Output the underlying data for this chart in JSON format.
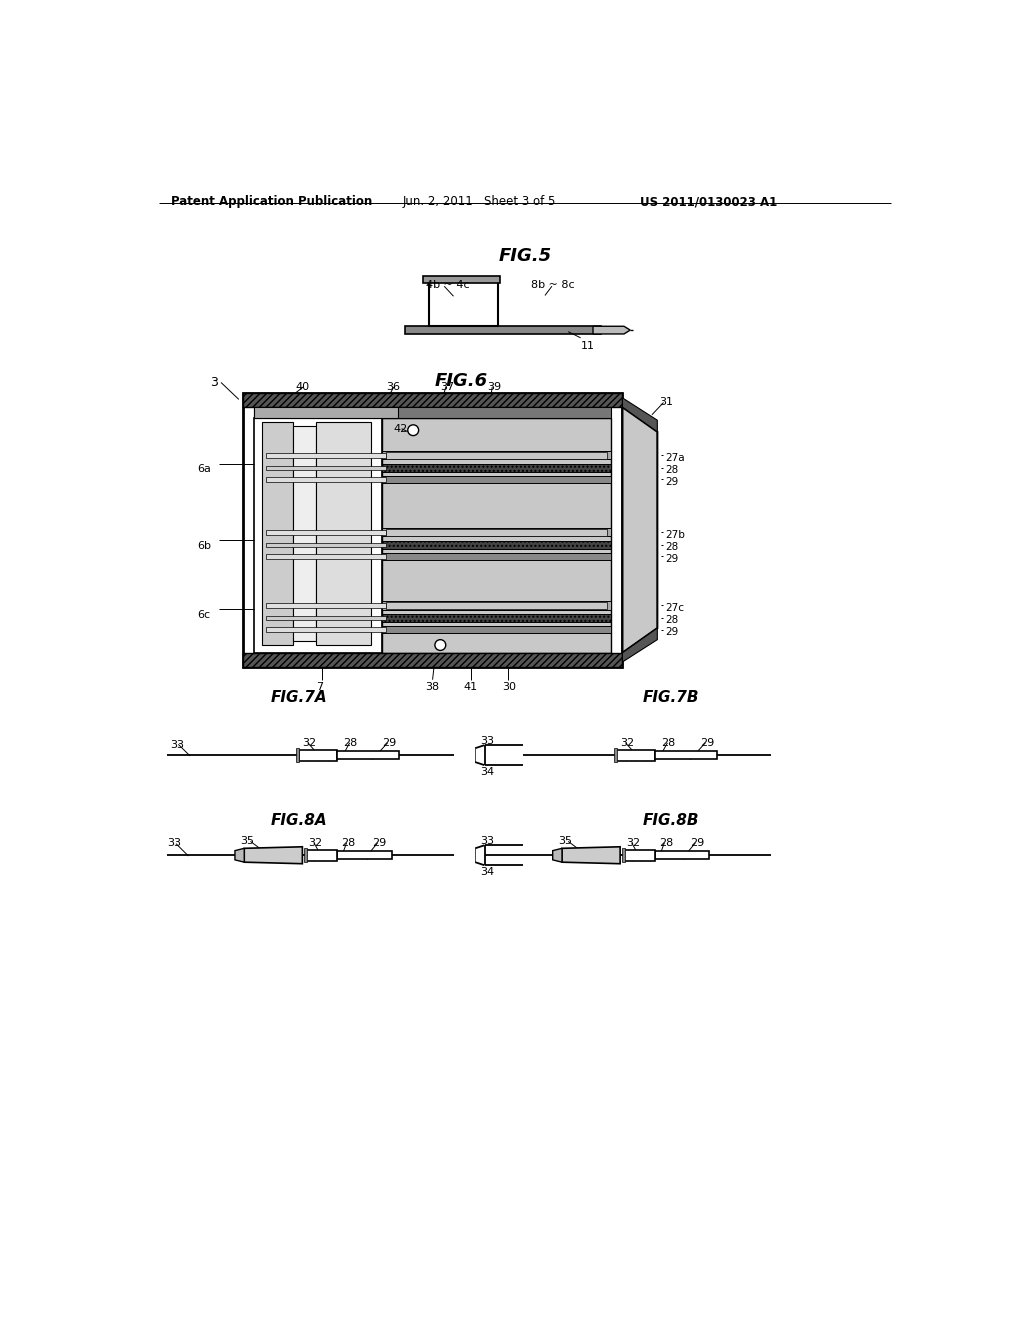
{
  "bg_color": "#ffffff",
  "text_color": "#000000",
  "header_left": "Patent Application Publication",
  "header_center": "Jun. 2, 2011   Sheet 3 of 5",
  "header_right": "US 2011/0130023 A1",
  "fig5_title": "FIG.5",
  "fig6_title": "FIG.6",
  "fig7a_title": "FIG.7A",
  "fig7b_title": "FIG.7B",
  "fig8a_title": "FIG.8A",
  "fig8b_title": "FIG.8B",
  "line_color": "#000000",
  "hatch_dark": "#555555",
  "shade_light": "#c8c8c8",
  "shade_med": "#999999",
  "shade_dark": "#444444"
}
